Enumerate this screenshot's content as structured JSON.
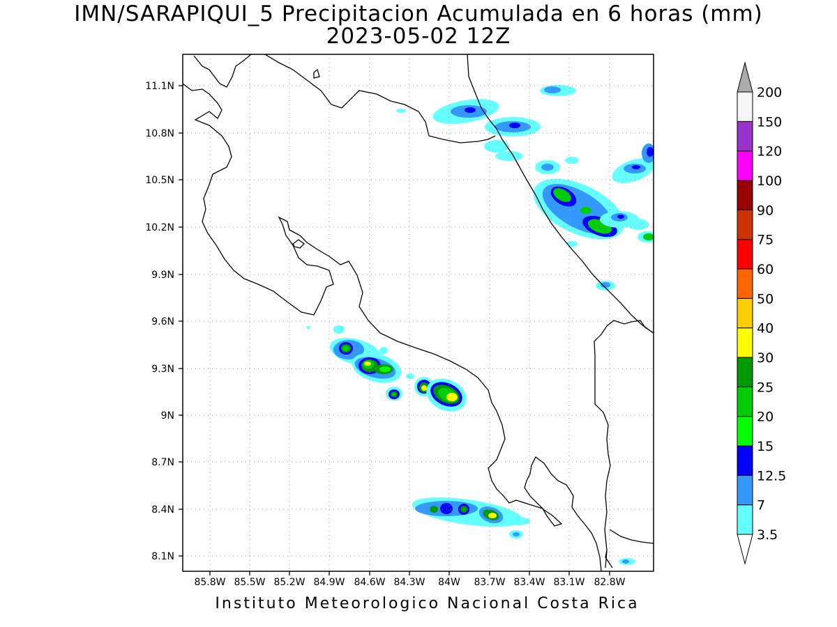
{
  "title": {
    "line1": "IMN/SARAPIQUI_5 Precipitacion Acumulada en 6 horas (mm)",
    "line2": "2023-05-02 12Z"
  },
  "footer": "Instituto Meteorologico Nacional Costa Rica",
  "axes": {
    "lat_ticks": [
      "11.1N",
      "10.8N",
      "10.5N",
      "10.2N",
      "9.9N",
      "9.6N",
      "9.3N",
      "9N",
      "8.7N",
      "8.4N",
      "8.1N"
    ],
    "lon_ticks": [
      "85.8W",
      "85.5W",
      "85.2W",
      "84.9W",
      "84.6W",
      "84.3W",
      "84W",
      "83.7W",
      "83.4W",
      "83.1W",
      "82.8W"
    ],
    "grid": "dotted"
  },
  "legend": {
    "levels": [
      "3.5",
      "7",
      "12.5",
      "15",
      "20",
      "25",
      "30",
      "40",
      "50",
      "60",
      "75",
      "90",
      "100",
      "120",
      "150",
      "200"
    ],
    "colors": [
      "#66ffff",
      "#3399ff",
      "#0000ff",
      "#00ff00",
      "#00cc00",
      "#009900",
      "#ffff00",
      "#ffcc00",
      "#ff6600",
      "#ff0000",
      "#cc3300",
      "#990000",
      "#ff00ff",
      "#9933cc",
      "#f5f5f5",
      "#aaaaaa"
    ],
    "below_color": "#ffffff",
    "above_color": "#aaaaaa"
  }
}
